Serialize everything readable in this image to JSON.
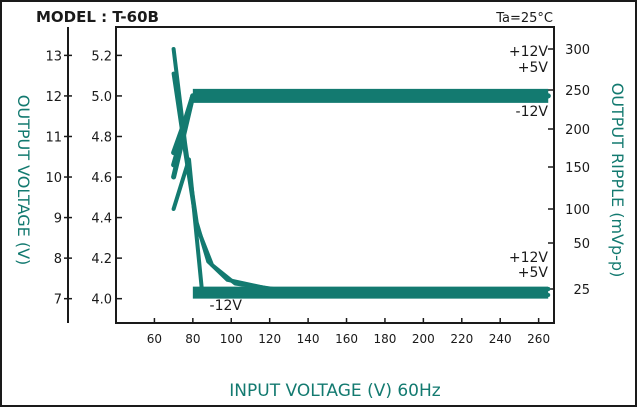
{
  "header": {
    "model": "MODEL : T-60B",
    "temperature": "Ta=25°C"
  },
  "axes": {
    "xlabel": "INPUT VOLTAGE (V) 60Hz",
    "ylabel_left": "OUTPUT VOLTAGE (V)",
    "ylabel_right": "OUTPUT RIPPLE (mVp-p)"
  },
  "colors": {
    "ink": "#1a1a1a",
    "curve": "#137a70",
    "axis_text": "#137a70"
  },
  "chart_data": {
    "type": "line",
    "title": "MODEL : T-60B",
    "annotation": "Ta=25°C",
    "xlabel": "INPUT VOLTAGE (V) 60Hz",
    "x_ticks": [
      60,
      80,
      100,
      120,
      140,
      160,
      180,
      200,
      220,
      240,
      260
    ],
    "xlim": [
      40,
      268
    ],
    "y_left_outer": {
      "label": "OUTPUT VOLTAGE (V)",
      "ticks": [
        7,
        8,
        9,
        10,
        11,
        12,
        13
      ],
      "ylim": [
        6.4,
        13.7
      ]
    },
    "y_left_inner": {
      "ticks": [
        4.0,
        4.2,
        4.4,
        4.6,
        4.8,
        5.0,
        5.2
      ],
      "tick_labels": [
        "4.0",
        "4.2",
        "4.4",
        "4.6",
        "4.8",
        "5.0",
        "5.2"
      ],
      "ylim": [
        3.88,
        5.34
      ]
    },
    "y_right": {
      "label": "OUTPUT RIPPLE (mVp-p)",
      "ticks": [
        25,
        50,
        100,
        150,
        200,
        250,
        300
      ],
      "tick_labels": [
        "25",
        "50",
        "100",
        "150",
        "200",
        "250",
        "300"
      ]
    },
    "series": [
      {
        "name": "+12V",
        "group": "output_voltage",
        "x": [
          70,
          76,
          80,
          265
        ],
        "y": [
          10.0,
          11.2,
          12.0,
          12.0
        ]
      },
      {
        "name": "+5V",
        "group": "output_voltage",
        "x": [
          70,
          76,
          80,
          265
        ],
        "y": [
          10.3,
          11.3,
          12.0,
          12.0
        ]
      },
      {
        "name": "-12V",
        "group": "output_voltage",
        "x": [
          70,
          76,
          80,
          265
        ],
        "y": [
          10.6,
          11.4,
          12.0,
          12.0
        ]
      },
      {
        "name": "+12V",
        "group": "output_ripple",
        "x": [
          70,
          76,
          82,
          88,
          98,
          120,
          265
        ],
        "y": [
          300,
          180,
          80,
          40,
          30,
          25,
          25
        ]
      },
      {
        "name": "+5V",
        "group": "output_ripple",
        "x": [
          70,
          76,
          82,
          90,
          102,
          122,
          265
        ],
        "y": [
          270,
          170,
          75,
          38,
          28,
          25,
          25
        ]
      },
      {
        "name": "-12V",
        "group": "output_ripple",
        "x": [
          70,
          78,
          85,
          100,
          115,
          265
        ],
        "y": [
          100,
          160,
          20,
          20,
          20,
          20
        ]
      }
    ],
    "grid": false,
    "legend": "inline labels at right end of curves"
  }
}
